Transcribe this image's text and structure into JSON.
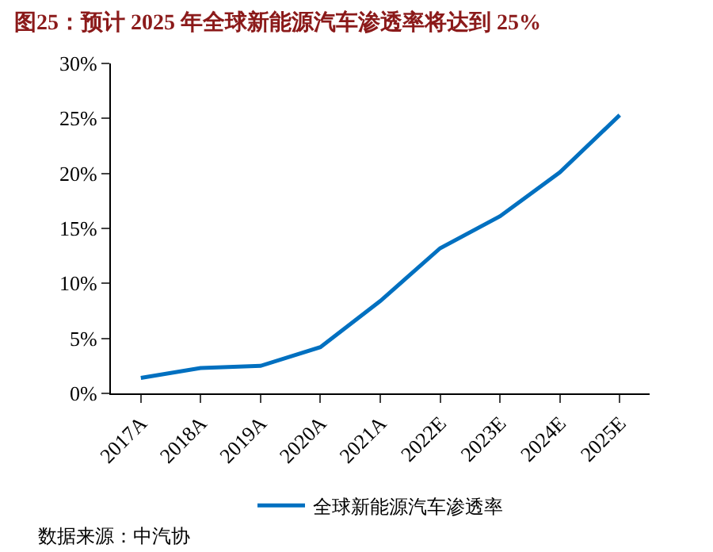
{
  "chart_data": {
    "type": "line",
    "title": "图25：预计 2025 年全球新能源汽车渗透率将达到 25%",
    "categories": [
      "2017A",
      "2018A",
      "2019A",
      "2020A",
      "2021A",
      "2022E",
      "2023E",
      "2024E",
      "2025E"
    ],
    "series": [
      {
        "name": "全球新能源汽车渗透率",
        "color": "#0070c0",
        "values": [
          1.4,
          2.3,
          2.5,
          4.2,
          8.4,
          13.2,
          16.1,
          20.1,
          25.3
        ]
      }
    ],
    "ylim": [
      0,
      30
    ],
    "yticks": [
      {
        "value": 0,
        "label": "0%"
      },
      {
        "value": 5,
        "label": "5%"
      },
      {
        "value": 10,
        "label": "10%"
      },
      {
        "value": 15,
        "label": "15%"
      },
      {
        "value": 20,
        "label": "20%"
      },
      {
        "value": 25,
        "label": "25%"
      },
      {
        "value": 30,
        "label": "30%"
      }
    ],
    "legend": "bottom",
    "marker": "none",
    "line_style": "solid",
    "annotations": [
      "数据来源：中汽协"
    ]
  }
}
